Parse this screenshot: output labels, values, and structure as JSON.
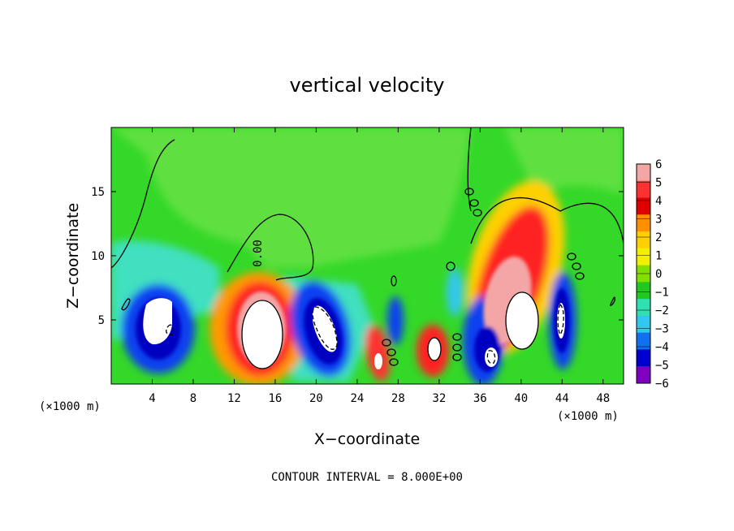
{
  "chart_data": {
    "type": "heatmap",
    "title": "vertical velocity",
    "xlabel": "X−coordinate",
    "ylabel": "Z−coordinate",
    "x_unit": "(×1000 m)",
    "z_unit": "(×1000 m)",
    "x_range": [
      0,
      50
    ],
    "z_range": [
      0,
      20
    ],
    "x_ticks": [
      "4",
      "8",
      "12",
      "16",
      "20",
      "24",
      "28",
      "32",
      "36",
      "40",
      "44",
      "48"
    ],
    "z_ticks": [
      "5",
      "10",
      "15"
    ],
    "colorbar": {
      "ticks": [
        "6",
        "5",
        "4",
        "3",
        "2",
        "1",
        "0",
        "−1",
        "−2",
        "−3",
        "−4",
        "−5",
        "−6"
      ],
      "colors": [
        "#f4a6a6",
        "#ff3030",
        "#e00000",
        "#ff9000",
        "#ffd000",
        "#f0f000",
        "#80e000",
        "#20c820",
        "#30e0b0",
        "#30c8f0",
        "#1070f0",
        "#0000d0",
        "#8000c0"
      ],
      "range": [
        -6,
        6
      ]
    },
    "contour_label": "0.00",
    "footer": "CONTOUR INTERVAL = 8.000E+00",
    "features": [
      {
        "x": 15,
        "z": 4.5,
        "w": 4.5,
        "type": "updraft"
      },
      {
        "x": 40,
        "z": 6.0,
        "w": 5.5,
        "type": "updraft"
      },
      {
        "x": 31,
        "z": 2.4,
        "w": 3.0,
        "type": "updraft"
      },
      {
        "x": 26,
        "z": 2.0,
        "w": 2.5,
        "type": "updraft"
      },
      {
        "x": 5,
        "z": 4.5,
        "w": -5.5,
        "type": "downdraft"
      },
      {
        "x": 20,
        "z": 4.0,
        "w": -5.0,
        "type": "downdraft"
      },
      {
        "x": 36.5,
        "z": 2.2,
        "w": -4.5,
        "type": "downdraft"
      },
      {
        "x": 44,
        "z": 4.5,
        "w": -4.5,
        "type": "downdraft"
      }
    ]
  }
}
